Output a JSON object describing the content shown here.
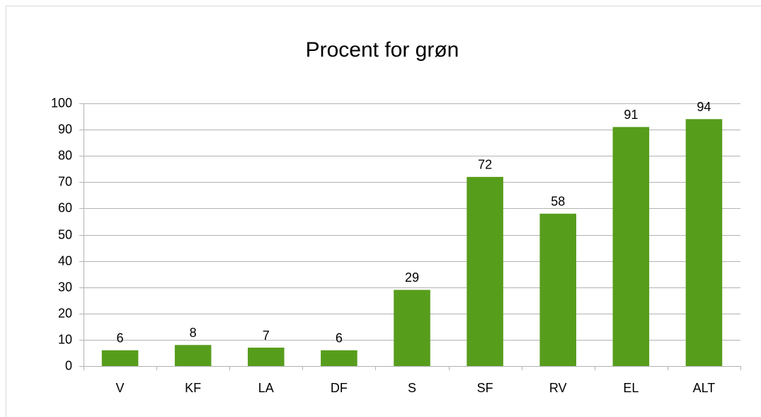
{
  "chart_data": {
    "type": "bar",
    "title": "Procent for grøn",
    "categories": [
      "V",
      "KF",
      "LA",
      "DF",
      "S",
      "SF",
      "RV",
      "EL",
      "ALT"
    ],
    "values": [
      6,
      8,
      7,
      6,
      29,
      72,
      58,
      91,
      94
    ],
    "color": "#579d1c",
    "ylim": [
      0,
      100
    ],
    "yticks": [
      0,
      10,
      20,
      30,
      40,
      50,
      60,
      70,
      80,
      90,
      100
    ],
    "grid": true
  }
}
